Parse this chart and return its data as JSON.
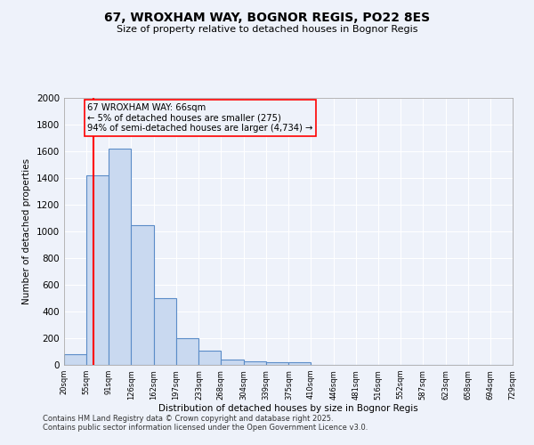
{
  "title1": "67, WROXHAM WAY, BOGNOR REGIS, PO22 8ES",
  "title2": "Size of property relative to detached houses in Bognor Regis",
  "xlabel": "Distribution of detached houses by size in Bognor Regis",
  "ylabel": "Number of detached properties",
  "bin_edges": [
    20,
    55,
    91,
    126,
    162,
    197,
    233,
    268,
    304,
    339,
    375,
    410,
    446,
    481,
    516,
    552,
    587,
    623,
    658,
    694,
    729
  ],
  "bar_heights": [
    80,
    1420,
    1620,
    1050,
    500,
    200,
    105,
    40,
    30,
    20,
    20,
    0,
    0,
    0,
    0,
    0,
    0,
    0,
    0,
    0
  ],
  "bar_color": "#c9d9f0",
  "bar_edge_color": "#5b8cc8",
  "ylim": [
    0,
    2000
  ],
  "yticks": [
    0,
    200,
    400,
    600,
    800,
    1000,
    1200,
    1400,
    1600,
    1800,
    2000
  ],
  "red_line_x": 66,
  "annotation_line1": "67 WROXHAM WAY: 66sqm",
  "annotation_line2": "← 5% of detached houses are smaller (275)",
  "annotation_line3": "94% of semi-detached houses are larger (4,734) →",
  "bg_color": "#eef2fa",
  "grid_color": "#ffffff",
  "footer1": "Contains HM Land Registry data © Crown copyright and database right 2025.",
  "footer2": "Contains public sector information licensed under the Open Government Licence v3.0."
}
